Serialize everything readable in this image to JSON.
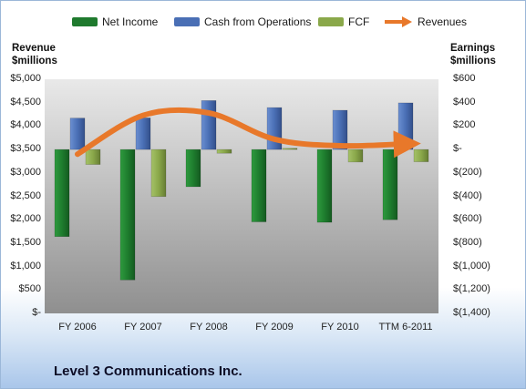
{
  "chart_data": {
    "type": "bar",
    "categories": [
      "FY 2006",
      "FY 2007",
      "FY 2008",
      "FY 2009",
      "FY 2010",
      "TTM 6-2011"
    ],
    "series": [
      {
        "name": "Net Income",
        "axis": "right",
        "kind": "bar",
        "color": "#1f7a2e",
        "values": [
          -744,
          -1114,
          -318,
          -618,
          -622,
          -600
        ]
      },
      {
        "name": "Cash from Operations",
        "axis": "right",
        "kind": "bar",
        "color": "#4a6fb5",
        "values": [
          268,
          270,
          418,
          358,
          335,
          398
        ]
      },
      {
        "name": "FCF",
        "axis": "right",
        "kind": "bar",
        "color": "#8aa84a",
        "values": [
          -128,
          -402,
          -32,
          10,
          -107,
          -105
        ]
      },
      {
        "name": "Revenues",
        "axis": "left",
        "kind": "line",
        "color": "#e8782a",
        "values": [
          3400,
          4230,
          4280,
          3720,
          3580,
          3620
        ]
      }
    ],
    "ylabel": "Revenue $millions",
    "ylabel_right": "Earnings $millions",
    "ylim": [
      0,
      5000
    ],
    "ylim_right": [
      -1400,
      600
    ],
    "yticks": [
      "$5,000",
      "$4,500",
      "$4,000",
      "$3,500",
      "$3,000",
      "$2,500",
      "$2,000",
      "$1,500",
      "$1,000",
      "$500",
      "$-"
    ],
    "yticks_right": [
      "$600",
      "$400",
      "$200",
      "$-",
      "$(200)",
      "$(400)",
      "$(600)",
      "$(800)",
      "$(1,000)",
      "$(1,200)",
      "$(1,400)"
    ],
    "grid": false,
    "legend_position": "top"
  },
  "company": "Level 3 Communications Inc.",
  "ylabel_lines": [
    "Revenue",
    "$millions"
  ],
  "ylabel_right_lines": [
    "Earnings",
    "$millions"
  ]
}
